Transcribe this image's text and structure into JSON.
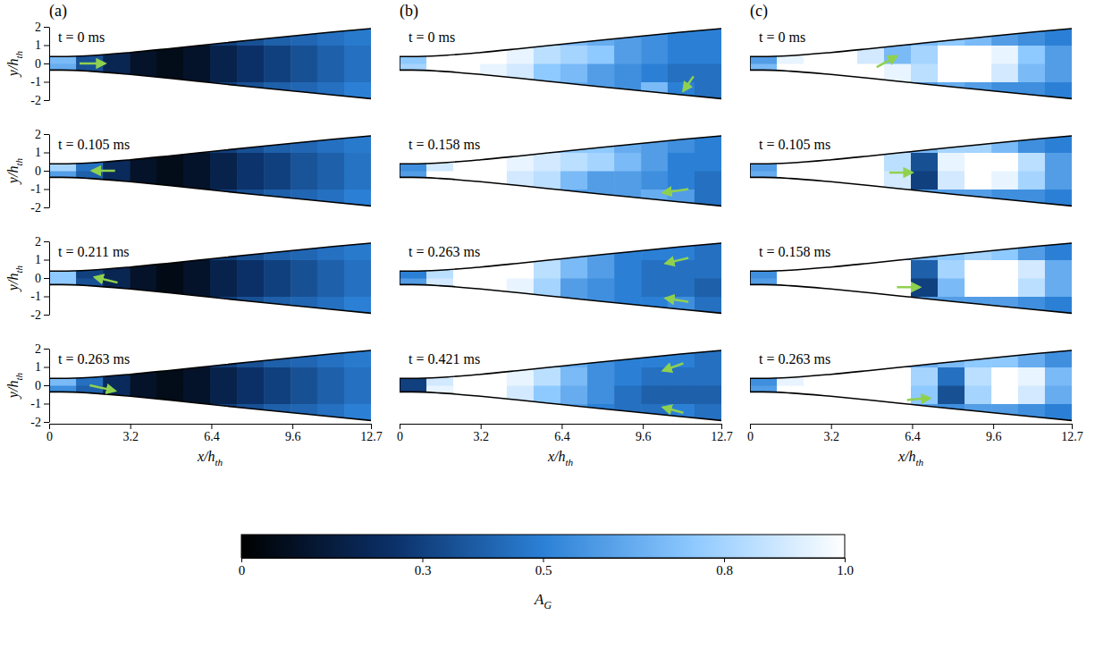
{
  "chart_data": {
    "type": "heatmap",
    "xlim": [
      0,
      12.7
    ],
    "ylim": [
      -2,
      2
    ],
    "xticks": [
      0,
      3.2,
      6.4,
      9.6,
      12.7
    ],
    "yticks": [
      -2,
      -1,
      0,
      1,
      2
    ],
    "x_label": {
      "text": "x/h",
      "sub": "th"
    },
    "y_label": {
      "text": "y/h",
      "sub": "th"
    },
    "walls": {
      "x": [
        0,
        0.5,
        1.6,
        3.2,
        4.8,
        6.4,
        8.0,
        9.6,
        11.2,
        12.7
      ],
      "upper": [
        0.38,
        0.38,
        0.43,
        0.6,
        0.82,
        1.05,
        1.28,
        1.5,
        1.72,
        1.9
      ],
      "lower": [
        -0.36,
        -0.36,
        -0.42,
        -0.6,
        -0.82,
        -1.05,
        -1.28,
        -1.5,
        -1.72,
        -1.92
      ]
    },
    "x_edges": [
      0,
      1.06,
      2.12,
      3.18,
      4.23,
      5.29,
      6.35,
      7.41,
      8.47,
      9.53,
      10.58,
      11.64,
      12.7
    ],
    "y_edges": [
      -2,
      -1,
      0,
      1,
      2
    ],
    "colorbar": {
      "range": [
        0,
        1
      ],
      "ticks": [
        0,
        0.3,
        0.5,
        0.8,
        {
          "value": 1,
          "label": "1.0"
        }
      ],
      "title": {
        "text": "A",
        "sub": "G"
      }
    },
    "columns": [
      {
        "label": "(a)",
        "frames": [
          {
            "time": "t = 0 ms",
            "cells": [
              [
                0.3,
                0.3,
                0.3,
                0.3,
                0.25,
                0.3,
                0.3,
                0.35,
                0.4,
                0.42,
                0.45,
                0.5
              ],
              [
                0.65,
                0.35,
                0.2,
                0.1,
                0.06,
                0.1,
                0.18,
                0.25,
                0.3,
                0.35,
                0.4,
                0.45
              ],
              [
                0.7,
                0.35,
                0.2,
                0.1,
                0.06,
                0.1,
                0.18,
                0.25,
                0.3,
                0.35,
                0.4,
                0.45
              ],
              [
                0.3,
                0.3,
                0.3,
                0.3,
                0.25,
                0.3,
                0.3,
                0.35,
                0.4,
                0.42,
                0.45,
                0.48
              ]
            ],
            "arrows": [
              {
                "x": 1.2,
                "y": 0,
                "x2": 2.2,
                "y2": 0
              }
            ]
          },
          {
            "time": "t = 0.105 ms",
            "cells": [
              [
                0.3,
                0.3,
                0.3,
                0.3,
                0.25,
                0.3,
                0.3,
                0.35,
                0.4,
                0.42,
                0.45,
                0.5
              ],
              [
                0.6,
                0.4,
                0.22,
                0.1,
                0.06,
                0.1,
                0.18,
                0.26,
                0.3,
                0.36,
                0.4,
                0.46
              ],
              [
                0.8,
                0.45,
                0.22,
                0.1,
                0.06,
                0.1,
                0.18,
                0.26,
                0.3,
                0.36,
                0.4,
                0.46
              ],
              [
                0.3,
                0.3,
                0.3,
                0.3,
                0.25,
                0.3,
                0.3,
                0.35,
                0.4,
                0.42,
                0.45,
                0.48
              ]
            ],
            "arrows": [
              {
                "x": 2.6,
                "y": 0,
                "x2": 1.7,
                "y2": 0
              }
            ]
          },
          {
            "time": "t = 0.211 ms",
            "cells": [
              [
                0.3,
                0.3,
                0.3,
                0.3,
                0.25,
                0.3,
                0.3,
                0.35,
                0.4,
                0.42,
                0.45,
                0.5
              ],
              [
                0.75,
                0.35,
                0.2,
                0.1,
                0.05,
                0.1,
                0.18,
                0.25,
                0.3,
                0.35,
                0.4,
                0.45
              ],
              [
                0.75,
                0.3,
                0.2,
                0.1,
                0.05,
                0.1,
                0.18,
                0.25,
                0.3,
                0.35,
                0.4,
                0.45
              ],
              [
                0.3,
                0.3,
                0.3,
                0.3,
                0.25,
                0.3,
                0.3,
                0.35,
                0.4,
                0.42,
                0.45,
                0.48
              ]
            ],
            "arrows": [
              {
                "x": 2.7,
                "y": -0.25,
                "x2": 1.8,
                "y2": 0.05
              }
            ]
          },
          {
            "time": "t = 0.263 ms",
            "cells": [
              [
                0.3,
                0.3,
                0.3,
                0.3,
                0.25,
                0.3,
                0.3,
                0.35,
                0.4,
                0.42,
                0.45,
                0.5
              ],
              [
                0.55,
                0.4,
                0.22,
                0.1,
                0.06,
                0.1,
                0.18,
                0.25,
                0.3,
                0.35,
                0.4,
                0.45
              ],
              [
                0.7,
                0.45,
                0.22,
                0.1,
                0.06,
                0.1,
                0.18,
                0.25,
                0.3,
                0.35,
                0.4,
                0.45
              ],
              [
                0.3,
                0.3,
                0.3,
                0.3,
                0.25,
                0.3,
                0.3,
                0.35,
                0.4,
                0.42,
                0.45,
                0.48
              ]
            ],
            "arrows": [
              {
                "x": 1.6,
                "y": 0,
                "x2": 2.6,
                "y2": -0.3
              }
            ]
          }
        ]
      },
      {
        "label": "(b)",
        "frames": [
          {
            "time": "t = 0 ms",
            "cells": [
              [
                0.5,
                0.5,
                0.5,
                0.5,
                0.55,
                0.6,
                0.65,
                0.6,
                0.55,
                0.7,
                0.5,
                0.45
              ],
              [
                0.8,
                1,
                1,
                0.95,
                0.9,
                0.75,
                0.7,
                0.6,
                0.55,
                0.5,
                0.45,
                0.45
              ],
              [
                0.75,
                1,
                1,
                1,
                0.95,
                0.85,
                0.8,
                0.75,
                0.6,
                0.55,
                0.5,
                0.5
              ],
              [
                0.5,
                0.5,
                0.5,
                0.5,
                0.55,
                0.65,
                0.7,
                0.65,
                0.6,
                0.55,
                0.5,
                0.5
              ]
            ],
            "arrows": [
              {
                "x": 11.6,
                "y": -0.7,
                "x2": 11.2,
                "y2": -1.5
              }
            ]
          },
          {
            "time": "t = 0.158 ms",
            "cells": [
              [
                0.5,
                0.5,
                0.5,
                0.5,
                0.55,
                0.6,
                0.6,
                0.6,
                0.6,
                0.65,
                0.6,
                0.45
              ],
              [
                0.6,
                1,
                1,
                1,
                0.9,
                0.85,
                0.7,
                0.6,
                0.6,
                0.55,
                0.5,
                0.45
              ],
              [
                0.55,
                0.9,
                1,
                1,
                0.95,
                0.9,
                0.85,
                0.8,
                0.7,
                0.6,
                0.5,
                0.5
              ],
              [
                0.5,
                0.5,
                0.5,
                0.5,
                0.6,
                0.7,
                0.75,
                0.75,
                0.65,
                0.6,
                0.55,
                0.5
              ]
            ],
            "arrows": [
              {
                "x": 11.4,
                "y": -1.0,
                "x2": 10.4,
                "y2": -1.2
              }
            ]
          },
          {
            "time": "t = 0.263 ms",
            "cells": [
              [
                0.5,
                0.5,
                0.5,
                0.5,
                0.55,
                0.6,
                0.6,
                0.55,
                0.5,
                0.5,
                0.55,
                0.45
              ],
              [
                0.6,
                0.9,
                1,
                1,
                0.95,
                0.8,
                0.6,
                0.55,
                0.5,
                0.45,
                0.45,
                0.4
              ],
              [
                0.5,
                0.85,
                1,
                1,
                1,
                0.85,
                0.7,
                0.6,
                0.5,
                0.45,
                0.45,
                0.45
              ],
              [
                0.5,
                0.5,
                0.5,
                0.5,
                0.6,
                0.75,
                0.7,
                0.6,
                0.5,
                0.5,
                0.5,
                0.45
              ]
            ],
            "arrows": [
              {
                "x": 11.4,
                "y": 1.1,
                "x2": 10.5,
                "y2": 0.8
              },
              {
                "x": 11.4,
                "y": -1.3,
                "x2": 10.5,
                "y2": -1.1
              }
            ]
          },
          {
            "time": "t = 0.421 ms",
            "cells": [
              [
                0.5,
                0.5,
                0.5,
                0.5,
                0.55,
                0.6,
                0.6,
                0.5,
                0.45,
                0.45,
                0.5,
                0.45
              ],
              [
                0.3,
                0.95,
                1,
                1,
                0.9,
                0.75,
                0.65,
                0.55,
                0.45,
                0.4,
                0.4,
                0.4
              ],
              [
                0.3,
                0.9,
                1,
                1,
                0.95,
                0.85,
                0.7,
                0.55,
                0.5,
                0.45,
                0.45,
                0.45
              ],
              [
                0.5,
                0.5,
                0.5,
                0.5,
                0.6,
                0.7,
                0.65,
                0.55,
                0.5,
                0.5,
                0.5,
                0.45
              ]
            ],
            "arrows": [
              {
                "x": 11.2,
                "y": 1.2,
                "x2": 10.4,
                "y2": 0.8
              },
              {
                "x": 11.2,
                "y": -1.5,
                "x2": 10.4,
                "y2": -1.2
              }
            ]
          }
        ]
      },
      {
        "label": "(c)",
        "frames": [
          {
            "time": "t = 0 ms",
            "cells": [
              [
                0.5,
                0.5,
                0.5,
                0.5,
                0.55,
                0.6,
                0.6,
                0.65,
                0.6,
                0.55,
                0.55,
                0.5
              ],
              [
                0.7,
                1,
                1,
                1,
                1,
                0.95,
                0.85,
                1,
                1,
                0.9,
                0.7,
                0.6
              ],
              [
                0.6,
                0.95,
                1,
                1,
                0.9,
                0.7,
                0.8,
                1,
                1,
                0.95,
                0.75,
                0.6
              ],
              [
                0.5,
                0.5,
                0.5,
                0.5,
                0.55,
                0.6,
                0.7,
                0.75,
                0.7,
                0.6,
                0.55,
                0.5
              ]
            ],
            "arrows": [
              {
                "x": 5.0,
                "y": -0.2,
                "x2": 5.8,
                "y2": 0.4
              }
            ]
          },
          {
            "time": "t = 0.105 ms",
            "cells": [
              [
                0.5,
                0.5,
                0.5,
                0.5,
                0.55,
                0.6,
                0.6,
                0.6,
                0.6,
                0.55,
                0.55,
                0.5
              ],
              [
                0.65,
                1,
                1,
                1,
                1,
                0.9,
                0.3,
                0.9,
                1,
                0.95,
                0.8,
                0.6
              ],
              [
                0.6,
                1,
                1,
                1,
                1,
                0.85,
                0.35,
                0.95,
                1,
                1,
                0.85,
                0.6
              ],
              [
                0.5,
                0.5,
                0.5,
                0.5,
                0.55,
                0.6,
                0.7,
                0.8,
                0.8,
                0.7,
                0.55,
                0.5
              ]
            ],
            "arrows": [
              {
                "x": 5.5,
                "y": -0.1,
                "x2": 6.4,
                "y2": -0.1
              }
            ]
          },
          {
            "time": "t = 0.158 ms",
            "cells": [
              [
                0.5,
                0.5,
                0.5,
                0.5,
                0.55,
                0.6,
                0.6,
                0.6,
                0.6,
                0.6,
                0.55,
                0.5
              ],
              [
                0.6,
                1,
                1,
                1,
                1,
                1,
                0.3,
                0.7,
                1,
                1,
                0.85,
                0.65
              ],
              [
                0.55,
                1,
                1,
                1,
                1,
                1,
                0.4,
                0.8,
                1,
                1,
                0.9,
                0.65
              ],
              [
                0.5,
                0.5,
                0.5,
                0.5,
                0.55,
                0.6,
                0.7,
                0.75,
                0.8,
                0.75,
                0.6,
                0.5
              ]
            ],
            "arrows": [
              {
                "x": 5.8,
                "y": -0.5,
                "x2": 6.7,
                "y2": -0.5
              }
            ]
          },
          {
            "time": "t = 0.263 ms",
            "cells": [
              [
                0.5,
                0.5,
                0.5,
                0.5,
                0.55,
                0.6,
                0.6,
                0.55,
                0.6,
                0.6,
                0.55,
                0.5
              ],
              [
                0.6,
                1,
                1,
                1,
                1,
                1,
                0.75,
                0.35,
                0.8,
                1,
                0.9,
                0.65
              ],
              [
                0.55,
                0.95,
                1,
                1,
                1,
                1,
                0.8,
                0.45,
                0.85,
                1,
                0.95,
                0.7
              ],
              [
                0.5,
                0.5,
                0.5,
                0.5,
                0.55,
                0.6,
                0.65,
                0.7,
                0.75,
                0.75,
                0.65,
                0.55
              ]
            ],
            "arrows": [
              {
                "x": 6.2,
                "y": -0.8,
                "x2": 7.1,
                "y2": -0.7
              }
            ]
          }
        ]
      }
    ]
  }
}
